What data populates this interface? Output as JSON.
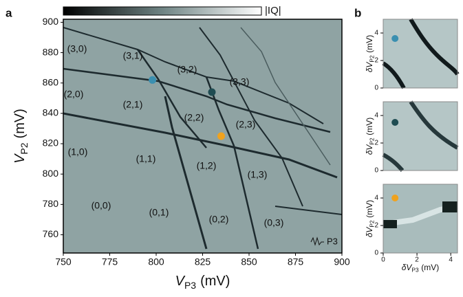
{
  "panel_labels": [
    "a",
    "b"
  ],
  "colorbar_label": "|IQ|",
  "chart_data": [
    {
      "type": "scatter",
      "x_label": [
        "V",
        "P3",
        "(mV)"
      ],
      "y_label": [
        "V",
        "P2",
        "(mV)"
      ],
      "xlim": [
        750,
        900
      ],
      "ylim": [
        748,
        902
      ],
      "xticks": [
        750,
        775,
        800,
        825,
        850,
        875,
        900
      ],
      "yticks": [
        760,
        780,
        800,
        820,
        840,
        860,
        880,
        900
      ],
      "x": [
        798,
        830,
        835
      ],
      "values": [
        862,
        854,
        825
      ],
      "colors": [
        "#3a8fb0",
        "#1f4c52",
        "#f0a21e"
      ],
      "annotations": [
        "(3,0)",
        "(3,1)",
        "(3,2)",
        "(3,3)",
        "(2,0)",
        "(2,1)",
        "(2,2)",
        "(2,3)",
        "(1,0)",
        "(1,1)",
        "(1,2)",
        "(1,3)",
        "(0,0)",
        "(0,1)",
        "(0,2)",
        "(0,3)"
      ],
      "gate_label": "P3"
    },
    {
      "type": "scatter",
      "y_label": [
        "δV",
        "P2",
        "(mV)"
      ],
      "xlim": [
        0,
        4.4
      ],
      "ylim": [
        0,
        5
      ],
      "yticks": [
        0,
        2,
        4
      ],
      "x": [
        0.7
      ],
      "values": [
        3.6
      ],
      "colors": [
        "#3a8fb0"
      ]
    },
    {
      "type": "scatter",
      "y_label": [
        "δV",
        "P2",
        "(mV)"
      ],
      "xlim": [
        0,
        4.4
      ],
      "ylim": [
        0,
        5
      ],
      "yticks": [
        0,
        2,
        4
      ],
      "x": [
        0.7
      ],
      "values": [
        3.5
      ],
      "colors": [
        "#1f4c52"
      ]
    },
    {
      "type": "scatter",
      "y_label": [
        "δV",
        "P2",
        "(mV)"
      ],
      "x_label": [
        "δV",
        "P3",
        "(mV)"
      ],
      "xlim": [
        0,
        4.4
      ],
      "ylim": [
        0,
        5
      ],
      "xticks": [
        0,
        2,
        4
      ],
      "yticks": [
        0,
        2,
        4
      ],
      "x": [
        0.7
      ],
      "values": [
        4.0
      ],
      "colors": [
        "#f0a21e"
      ]
    }
  ]
}
